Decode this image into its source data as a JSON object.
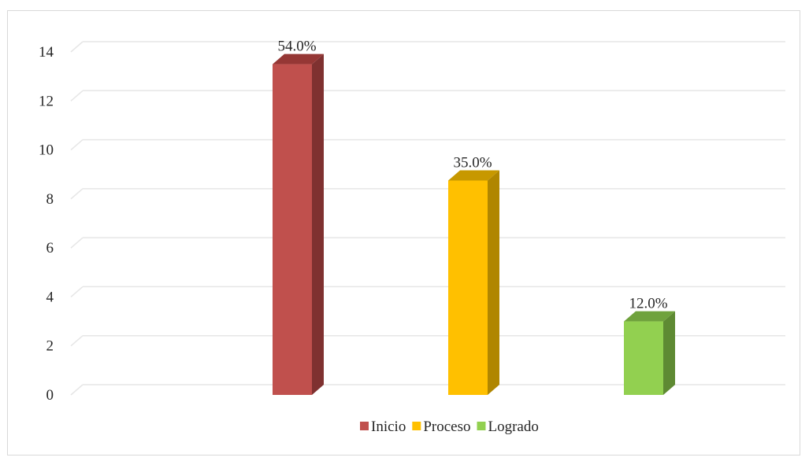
{
  "chart_data": {
    "type": "bar",
    "style": "3d-column",
    "title": "",
    "xlabel": "",
    "ylabel": "",
    "ylim": [
      0,
      14
    ],
    "yticks": [
      0,
      2,
      4,
      6,
      8,
      10,
      12,
      14
    ],
    "grid": true,
    "legend_position": "bottom",
    "categories": [
      "Inicio",
      "Proceso",
      "Logrado"
    ],
    "values": [
      13.5,
      8.75,
      3.0
    ],
    "data_labels": [
      "54.0%",
      "35.0%",
      "12.0%"
    ],
    "colors": [
      {
        "front": "#c0504d",
        "side": "#7f3130",
        "top": "#953735"
      },
      {
        "front": "#ffc000",
        "side": "#b08600",
        "top": "#c79800"
      },
      {
        "front": "#92d050",
        "side": "#5e8a33",
        "top": "#6fa23c"
      }
    ],
    "legend": [
      {
        "label": "Inicio",
        "color": "#c0504d"
      },
      {
        "label": "Proceso",
        "color": "#ffc000"
      },
      {
        "label": "Logrado",
        "color": "#92d050"
      }
    ],
    "gridline_color": "#e6e6e6",
    "axis_text_color": "#262626"
  }
}
